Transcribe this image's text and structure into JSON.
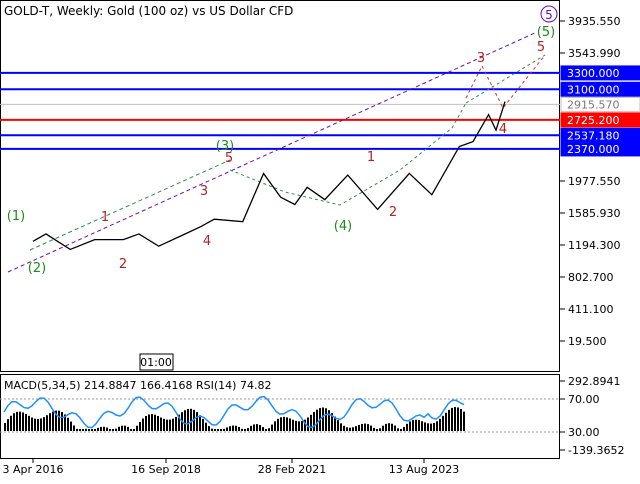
{
  "chart_data": {
    "type": "line",
    "title": "GOLD-T, Weekly:  Gold (100 oz) vs US Dollar CFD",
    "main_price_ticks": [
      "3935.550",
      "3543.990",
      "1977.550",
      "1585.930",
      "1194.300",
      "802.700",
      "411.100",
      "19.500"
    ],
    "price_levels": [
      {
        "label": "3300.000",
        "value": 3300,
        "color": "#0000ff",
        "kind": "horizontal-line"
      },
      {
        "label": "3100.000",
        "value": 3100,
        "color": "#0000ff",
        "kind": "horizontal-line"
      },
      {
        "label": "2915.570",
        "value": 2915.57,
        "color": "#c0c0c0",
        "kind": "current-price"
      },
      {
        "label": "2725.200",
        "value": 2725.2,
        "color": "#ff0000",
        "kind": "horizontal-line"
      },
      {
        "label": "2537.180",
        "value": 2537.18,
        "color": "#0000ff",
        "kind": "horizontal-line"
      },
      {
        "label": "2370.000",
        "value": 2370,
        "color": "#0000ff",
        "kind": "horizontal-line"
      }
    ],
    "x_tick_labels": [
      "3 Apr 2016",
      "16 Sep 2018",
      "28 Feb 2021",
      "13 Aug 2023"
    ],
    "time_marker": "01:00",
    "elliptical_labels_green": [
      "(1)",
      "(2)",
      "(3)",
      "(4)",
      "(5)"
    ],
    "elliptical_labels_red": [
      "1",
      "2",
      "3",
      "4",
      "5"
    ],
    "elliptical_label_purple": "5",
    "price_series": {
      "name": "",
      "points": [
        [
          "2016-04-03",
          1240
        ],
        [
          "2016-07-01",
          1330
        ],
        [
          "2016-12-15",
          1140
        ],
        [
          "2017-06-01",
          1260
        ],
        [
          "2017-12-15",
          1260
        ],
        [
          "2018-04-01",
          1330
        ],
        [
          "2018-08-15",
          1180
        ],
        [
          "2019-02-01",
          1320
        ],
        [
          "2019-06-01",
          1420
        ],
        [
          "2019-09-01",
          1510
        ],
        [
          "2020-03-15",
          1480
        ],
        [
          "2020-08-05",
          2070
        ],
        [
          "2020-11-30",
          1780
        ],
        [
          "2021-03-08",
          1690
        ],
        [
          "2021-06-01",
          1900
        ],
        [
          "2021-09-30",
          1750
        ],
        [
          "2022-03-07",
          2050
        ],
        [
          "2022-09-28",
          1630
        ],
        [
          "2023-05-04",
          2070
        ],
        [
          "2023-10-06",
          1810
        ],
        [
          "2024-04-12",
          2400
        ],
        [
          "2024-07-15",
          2460
        ],
        [
          "2024-10-30",
          2790
        ],
        [
          "2024-12-20",
          2600
        ],
        [
          "2025-02-20",
          2950
        ]
      ]
    },
    "indicator": {
      "title": "MACD(5,34,5) 214.8847 166.4168 RSI(14) 74.82",
      "ticks": [
        "292.8941",
        "70.00",
        "30.00",
        "-139.3652"
      ]
    }
  }
}
